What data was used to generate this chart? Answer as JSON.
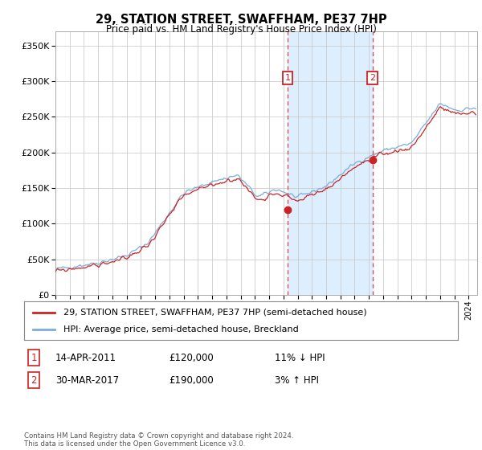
{
  "title": "29, STATION STREET, SWAFFHAM, PE37 7HP",
  "subtitle": "Price paid vs. HM Land Registry's House Price Index (HPI)",
  "legend_line1": "29, STATION STREET, SWAFFHAM, PE37 7HP (semi-detached house)",
  "legend_line2": "HPI: Average price, semi-detached house, Breckland",
  "annotation1_date": "14-APR-2011",
  "annotation1_price": "£120,000",
  "annotation1_hpi": "11% ↓ HPI",
  "annotation2_date": "30-MAR-2017",
  "annotation2_price": "£190,000",
  "annotation2_hpi": "3% ↑ HPI",
  "footnote": "Contains HM Land Registry data © Crown copyright and database right 2024.\nThis data is licensed under the Open Government Licence v3.0.",
  "hpi_color": "#7aaddb",
  "price_color": "#cc2222",
  "marker_color": "#cc2222",
  "shade_color": "#ddeeff",
  "vline_color": "#dd4444",
  "grid_color": "#cccccc",
  "bg_color": "#ffffff",
  "ylim": [
    0,
    370000
  ],
  "yticks": [
    0,
    50000,
    100000,
    150000,
    200000,
    250000,
    300000,
    350000
  ],
  "sale1_year": 2011.3,
  "sale1_value": 120000,
  "sale2_year": 2017.25,
  "sale2_value": 190000
}
